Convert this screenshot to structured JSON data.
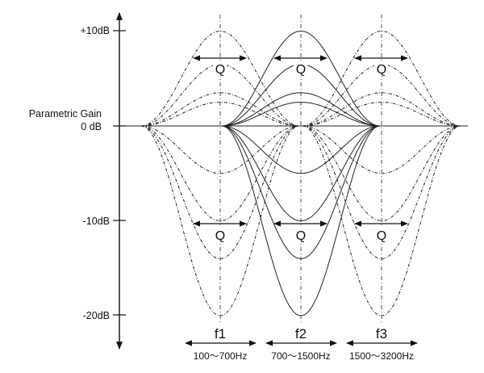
{
  "y_axis": {
    "ticks": [
      {
        "label": "+10dB",
        "db": 10
      },
      {
        "label": "0 dB",
        "db": 0
      },
      {
        "label": "-10dB",
        "db": -10
      },
      {
        "label": "-20dB",
        "db": -20
      }
    ],
    "zero_caption": "Parametric Gain"
  },
  "q_label": "Q",
  "bands": [
    {
      "name": "f1",
      "range": "100～700Hz",
      "style": "dashdot"
    },
    {
      "name": "f2",
      "range": "700～1500Hz",
      "style": "solid"
    },
    {
      "name": "f3",
      "range": "1500～3200Hz",
      "style": "dashdot"
    }
  ],
  "gain_curves_db": [
    10,
    6.5,
    3.5,
    2.5,
    -5,
    -10,
    -14,
    -20
  ],
  "colors": {
    "line": "#222222",
    "background": "#ffffff"
  }
}
